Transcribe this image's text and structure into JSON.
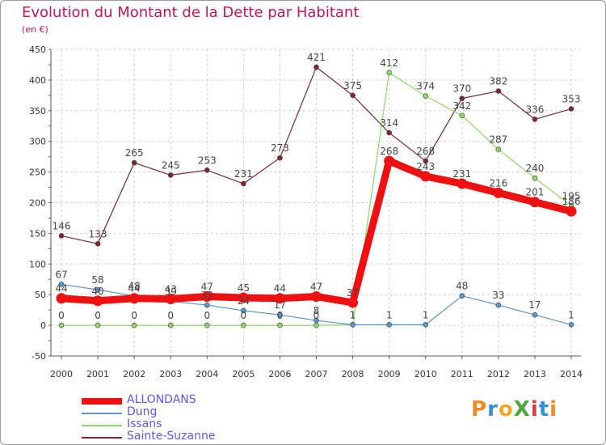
{
  "title": "Evolution du Montant de la Dette par Habitant",
  "unit": "(en €)",
  "brand": "ProXiti",
  "colors": {
    "title": "#c2185b",
    "legend_text": "#5a5ae6"
  },
  "chart_data": {
    "type": "line",
    "x": [
      2000,
      2001,
      2002,
      2003,
      2004,
      2005,
      2006,
      2007,
      2008,
      2009,
      2010,
      2011,
      2012,
      2013,
      2014
    ],
    "ylim": [
      -50,
      450
    ],
    "yticks": [
      -50,
      0,
      50,
      100,
      150,
      200,
      250,
      300,
      350,
      400,
      450
    ],
    "grid": true,
    "legend_position": "bottom-left",
    "series": [
      {
        "name": "ALLONDANS",
        "color": "#ee1111",
        "values": [
          44,
          40,
          44,
          43,
          47,
          45,
          44,
          47,
          37,
          268,
          243,
          231,
          216,
          201,
          186
        ]
      },
      {
        "name": "Dung",
        "color": "#5a96c8",
        "values": [
          67,
          58,
          48,
          39,
          33,
          24,
          17,
          8,
          1,
          1,
          1,
          48,
          33,
          17,
          1
        ]
      },
      {
        "name": "Issans",
        "color": "#8ed66b",
        "values": [
          0,
          0,
          0,
          0,
          0,
          0,
          0,
          0,
          1,
          412,
          374,
          342,
          287,
          240,
          195
        ]
      },
      {
        "name": "Sainte-Suzanne",
        "color": "#7a2a2a",
        "values": [
          146,
          133,
          265,
          245,
          253,
          231,
          273,
          421,
          375,
          314,
          268,
          370,
          382,
          336,
          353
        ]
      }
    ]
  }
}
